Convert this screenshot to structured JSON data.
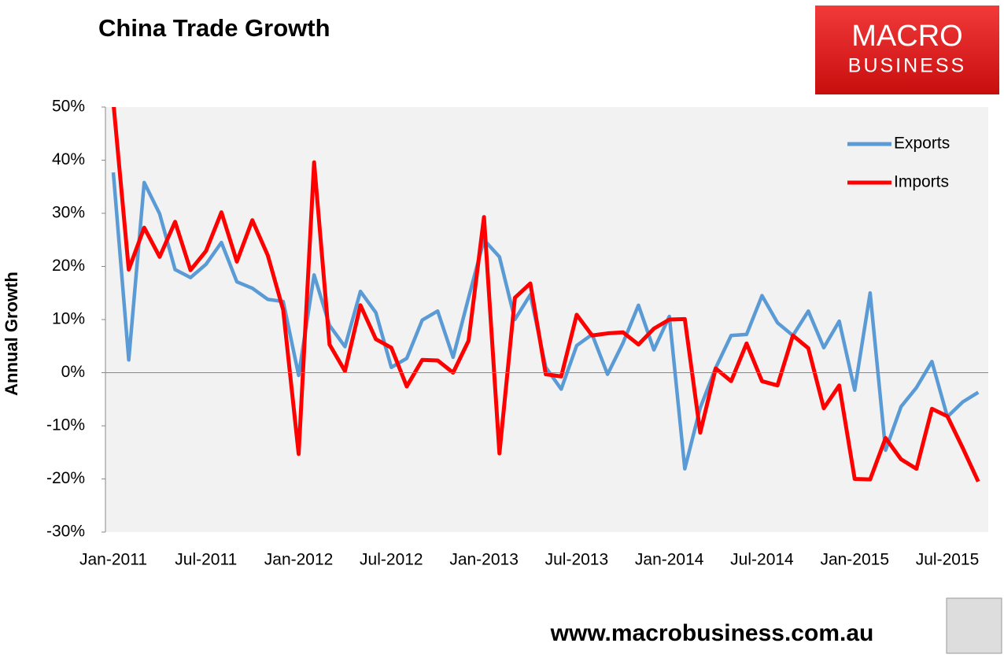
{
  "brand": {
    "line1": "MACRO",
    "line2": "BUSINESS"
  },
  "footer": "www.macrobusiness.com.au",
  "chart_data": {
    "type": "line",
    "title": "China Trade Growth",
    "y_label": "Annual Growth",
    "categories": [
      "Jan-2011",
      null,
      null,
      null,
      null,
      null,
      "Jul-2011",
      null,
      null,
      null,
      null,
      null,
      "Jan-2012",
      null,
      null,
      null,
      null,
      null,
      "Jul-2012",
      null,
      null,
      null,
      null,
      null,
      "Jan-2013",
      null,
      null,
      null,
      null,
      null,
      "Jul-2013",
      null,
      null,
      null,
      null,
      null,
      "Jan-2014",
      null,
      null,
      null,
      null,
      null,
      "Jul-2014",
      null,
      null,
      null,
      null,
      null,
      "Jan-2015",
      null,
      null,
      null,
      null,
      null,
      "Jul-2015",
      null,
      null
    ],
    "series": [
      {
        "name": "Exports",
        "color": "#5b9bd5",
        "values": [
          37.7,
          2.4,
          35.8,
          29.9,
          19.4,
          17.9,
          20.4,
          24.5,
          17.1,
          15.9,
          13.8,
          13.4,
          -0.5,
          18.4,
          8.9,
          4.9,
          15.3,
          11.3,
          1.0,
          2.7,
          9.9,
          11.6,
          2.9,
          14.1,
          25.0,
          21.8,
          10.0,
          14.7,
          1.0,
          -3.1,
          5.1,
          7.2,
          -0.3,
          5.6,
          12.7,
          4.3,
          10.6,
          -18.1,
          -6.6,
          0.9,
          7.0,
          7.2,
          14.5,
          9.4,
          7.0,
          11.6,
          4.7,
          9.7,
          -3.3,
          15.0,
          -14.6,
          -6.4,
          -2.8,
          2.1,
          -8.3,
          -5.5,
          -3.7
        ]
      },
      {
        "name": "Imports",
        "color": "#ff0000",
        "values": [
          51.0,
          19.4,
          27.3,
          21.8,
          28.4,
          19.3,
          22.9,
          30.2,
          20.9,
          28.7,
          22.1,
          11.8,
          -15.3,
          39.6,
          5.3,
          0.3,
          12.7,
          6.3,
          4.7,
          -2.6,
          2.4,
          2.3,
          0.0,
          6.0,
          29.3,
          -15.2,
          14.1,
          16.8,
          -0.3,
          -0.7,
          10.9,
          7.0,
          7.4,
          7.6,
          5.3,
          8.3,
          10.0,
          10.1,
          -11.3,
          0.8,
          -1.6,
          5.5,
          -1.6,
          -2.4,
          7.0,
          4.6,
          -6.7,
          -2.4,
          -20.0,
          -20.1,
          -12.3,
          -16.3,
          -18.1,
          -6.8,
          -8.2,
          -14.2,
          -20.5
        ]
      }
    ],
    "ylim": [
      -30,
      50
    ],
    "yticks": [
      {
        "value": -30,
        "label": "-30%"
      },
      {
        "value": -20,
        "label": "-20%"
      },
      {
        "value": -10,
        "label": "-10%"
      },
      {
        "value": 0,
        "label": "0%"
      },
      {
        "value": 10,
        "label": "10%"
      },
      {
        "value": 20,
        "label": "20%"
      },
      {
        "value": 30,
        "label": "30%"
      },
      {
        "value": 40,
        "label": "40%"
      },
      {
        "value": 50,
        "label": "50%"
      }
    ],
    "legend": "top-right"
  }
}
